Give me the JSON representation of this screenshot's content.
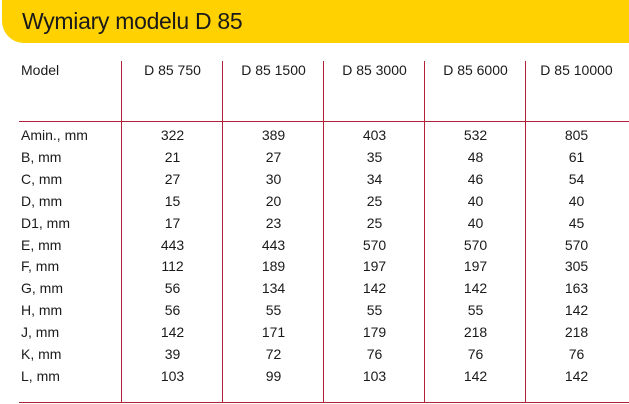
{
  "title": "Wymiary modelu D 85",
  "accent_color": "#ffd100",
  "rule_color": "#b0213a",
  "table": {
    "header_label": "Model",
    "columns": [
      "D 85 750",
      "D 85 1500",
      "D 85 3000",
      "D 85 6000",
      "D 85 10000"
    ],
    "rows": [
      {
        "label": "Amin., mm",
        "values": [
          "322",
          "389",
          "403",
          "532",
          "805"
        ]
      },
      {
        "label": "B, mm",
        "values": [
          "21",
          "27",
          "35",
          "48",
          "61"
        ]
      },
      {
        "label": "C, mm",
        "values": [
          "27",
          "30",
          "34",
          "46",
          "54"
        ]
      },
      {
        "label": "D, mm",
        "values": [
          "15",
          "20",
          "25",
          "40",
          "40"
        ]
      },
      {
        "label": "D1, mm",
        "values": [
          "17",
          "23",
          "25",
          "40",
          "45"
        ]
      },
      {
        "label": "E, mm",
        "values": [
          "443",
          "443",
          "570",
          "570",
          "570"
        ]
      },
      {
        "label": "F, mm",
        "values": [
          "112",
          "189",
          "197",
          "197",
          "305"
        ]
      },
      {
        "label": "G, mm",
        "values": [
          "56",
          "134",
          "142",
          "142",
          "163"
        ]
      },
      {
        "label": "H, mm",
        "values": [
          "56",
          "55",
          "55",
          "55",
          "142"
        ]
      },
      {
        "label": "J, mm",
        "values": [
          "142",
          "171",
          "179",
          "218",
          "218"
        ]
      },
      {
        "label": "K, mm",
        "values": [
          "39",
          "72",
          "76",
          "76",
          "76"
        ]
      },
      {
        "label": "L, mm",
        "values": [
          "103",
          "99",
          "103",
          "142",
          "142"
        ]
      }
    ]
  }
}
